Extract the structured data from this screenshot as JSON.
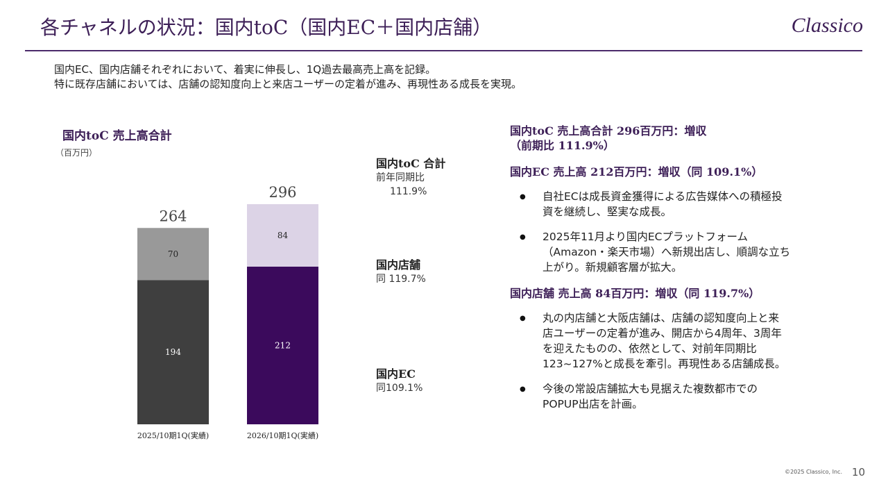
{
  "header": {
    "title": "各チャネルの状況：国内toC（国内EC＋国内店舗）",
    "logo": "Classico"
  },
  "intro": {
    "line1": "国内EC、国内店舗それぞれにおいて、着実に伸長し、1Q過去最高売上高を記録。",
    "line2": "特に既存店舗においては、店舗の認知度向上と来店ユーザーの定着が進み、再現性ある成長を実現。"
  },
  "chart_data": {
    "type": "bar",
    "stacked": true,
    "title": "国内toC 売上高合計",
    "unit": "（百万円）",
    "categories": [
      "2025/10期1Q(実績)",
      "2026/10期1Q(実績)"
    ],
    "totals": [
      264,
      296
    ],
    "series": [
      {
        "name": "国内EC",
        "values": [
          194,
          212
        ],
        "colors": [
          "#3f3f3f",
          "#3b0a5c"
        ]
      },
      {
        "name": "国内店舗",
        "values": [
          70,
          84
        ],
        "colors": [
          "#999999",
          "#dcd3e6"
        ]
      }
    ],
    "ylim": [
      0,
      296
    ]
  },
  "legend": {
    "total": {
      "title": "国内toC 合計",
      "sub1": "前年同期比",
      "sub2": "111.9%"
    },
    "store": {
      "title": "国内店舗",
      "sub": "同 119.7%"
    },
    "ec": {
      "title": "国内EC",
      "sub": "同109.1%"
    }
  },
  "right": {
    "head1_line1": "国内toC 売上高合計 296百万円：増収",
    "head1_line2": "（前期比 111.9%）",
    "head2": "国内EC 売上高 212百万円：増収（同 109.1%）",
    "ec_bullets": [
      [
        "自社ECは成長資金獲得による広告媒体への積極投",
        "資を継続し、堅実な成長。"
      ],
      [
        "2025年11月より国内ECプラットフォーム",
        "（Amazon・楽天市場）へ新規出店し、順調な立ち",
        "上がり。新規顧客層が拡大。"
      ]
    ],
    "head3": "国内店舗 売上高 84百万円：増収（同 119.7%）",
    "store_bullets": [
      [
        "丸の内店舗と大阪店舗は、店舗の認知度向上と来",
        "店ユーザーの定着が進み、開店から4周年、3周年",
        "を迎えたものの、依然として、対前年同期比",
        "123~127%と成長を牽引。再現性ある店舗成長。"
      ],
      [
        "今後の常設店舗拡大も見据えた複数都市での",
        "POPUP出店を計画。"
      ]
    ],
    "bullet_symbol": "●"
  },
  "footer": {
    "copyright": "©2025 Classico, Inc.",
    "page": "10"
  }
}
